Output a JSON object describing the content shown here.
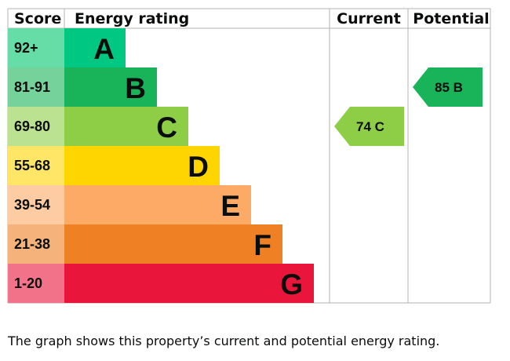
{
  "chart_data": {
    "type": "table",
    "headers": {
      "score": "Score",
      "rating": "Energy rating",
      "current": "Current",
      "potential": "Potential"
    },
    "bands": [
      {
        "letter": "A",
        "range": "92+",
        "color": "#00c781",
        "score_bg": "#66dda7"
      },
      {
        "letter": "B",
        "range": "81-91",
        "color": "#19b459",
        "score_bg": "#75d29b"
      },
      {
        "letter": "C",
        "range": "69-80",
        "color": "#8dce46",
        "score_bg": "#bbe290"
      },
      {
        "letter": "D",
        "range": "55-68",
        "color": "#ffd500",
        "score_bg": "#ffe666"
      },
      {
        "letter": "E",
        "range": "39-54",
        "color": "#fcaa65",
        "score_bg": "#fdcca3"
      },
      {
        "letter": "F",
        "range": "21-38",
        "color": "#ef8023",
        "score_bg": "#f5b37b"
      },
      {
        "letter": "G",
        "range": "1-20",
        "color": "#e9153b",
        "score_bg": "#f27389"
      }
    ],
    "current": {
      "value": 74,
      "band": "C",
      "label": "74  C"
    },
    "potential": {
      "value": 85,
      "band": "B",
      "label": "85  B"
    }
  },
  "caption": "The graph shows this property’s current and potential energy rating."
}
